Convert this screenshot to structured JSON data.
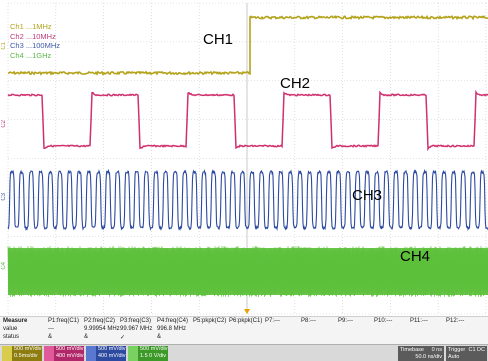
{
  "legend": [
    {
      "label": "Ch1 ...1MHz",
      "color": "#b3a21a"
    },
    {
      "label": "Ch2 ...10MHz",
      "color": "#c03a7a"
    },
    {
      "label": "Ch3 ...100MHz",
      "color": "#3d57a8"
    },
    {
      "label": "Ch4 ...1GHz",
      "color": "#5ab845"
    }
  ],
  "channel_labels": {
    "ch1": "CH1",
    "ch2": "CH2",
    "ch3": "CH3",
    "ch4": "CH4"
  },
  "side_tags": {
    "c1": "C1",
    "c2": "C2",
    "c3": "C3",
    "c4": "C4"
  },
  "colors": {
    "ch1": "#b3a21a",
    "ch2": "#d0306e",
    "ch3": "#2c4aa0",
    "ch4": "#5cc03a",
    "grid": "#c8c8c8",
    "trigger": "#e8a000"
  },
  "measure": {
    "labels": [
      "Measure",
      "value",
      "status"
    ],
    "params": [
      {
        "name": "P1:freq(C1)",
        "value": "---",
        "status": "&"
      },
      {
        "name": "P2:freq(C2)",
        "value": "9.99954 MHz",
        "status": "&"
      },
      {
        "name": "P3:freq(C3)",
        "value": "99.967 MHz",
        "status": "✓"
      },
      {
        "name": "P4:freq(C4)",
        "value": "996.8 MHz",
        "status": "&"
      },
      {
        "name": "P5:pkpk(C2)",
        "value": "",
        "status": ""
      },
      {
        "name": "P6:pkpk(C1)",
        "value": "",
        "status": ""
      },
      {
        "name": "P7:---",
        "value": "",
        "status": ""
      },
      {
        "name": "P8:---",
        "value": "",
        "status": ""
      },
      {
        "name": "P9:---",
        "value": "",
        "status": ""
      },
      {
        "name": "P10:---",
        "value": "",
        "status": ""
      },
      {
        "name": "P11:---",
        "value": "",
        "status": ""
      },
      {
        "name": "P12:---",
        "value": "",
        "status": ""
      }
    ]
  },
  "channel_boxes": [
    {
      "tag": "C1",
      "line1": "500 mV/div",
      "line2": "0.5ms/div",
      "color": "#8d7d10"
    },
    {
      "tag": "C2",
      "line1": "500 mV/div",
      "line2": "400 mV/div",
      "color": "#b0286a"
    },
    {
      "tag": "C3",
      "line1": "500 mV/div",
      "line2": "400 mV/div",
      "color": "#2c4aa0"
    },
    {
      "tag": "C4",
      "line1": "500 mV/div",
      "line2": "1.5 0 V/div",
      "color": "#3d9a28"
    }
  ],
  "timebase": {
    "title": "Timebase",
    "value": "0 ns",
    "line2": "50.0 ns/div",
    "line3": "10 GS/s"
  },
  "trigger": {
    "title": "Trigger",
    "value": "C1 DC",
    "line2": "Auto",
    "line3": "Edge"
  }
}
